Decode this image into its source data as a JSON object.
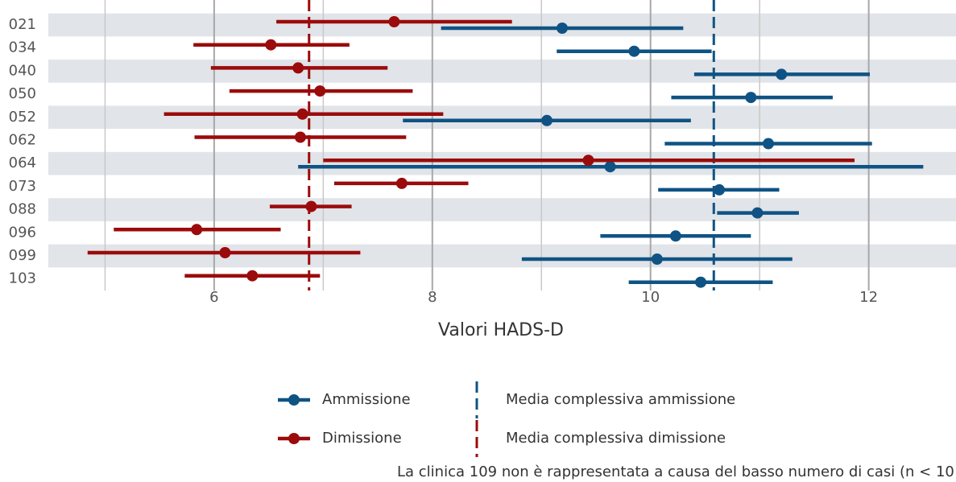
{
  "chart_data": {
    "type": "dot-errorbar",
    "categories": [
      "021",
      "034",
      "040",
      "050",
      "052",
      "062",
      "064",
      "073",
      "088",
      "096",
      "099",
      "103"
    ],
    "series": [
      {
        "name": "Ammissione",
        "color": "#0f5384",
        "values": [
          9.19,
          9.85,
          11.2,
          10.92,
          9.05,
          11.08,
          9.63,
          10.63,
          10.98,
          10.23,
          10.06,
          10.46
        ],
        "low": [
          8.08,
          9.14,
          10.4,
          10.19,
          7.73,
          10.13,
          6.77,
          10.07,
          10.61,
          9.54,
          8.82,
          9.8
        ],
        "high": [
          10.3,
          10.56,
          12.01,
          11.67,
          10.37,
          12.03,
          12.5,
          11.18,
          11.36,
          10.92,
          11.3,
          11.12
        ]
      },
      {
        "name": "Dimissione",
        "color": "#9b0b0b",
        "values": [
          7.65,
          6.52,
          6.77,
          6.97,
          6.81,
          6.79,
          9.43,
          7.72,
          6.89,
          5.84,
          6.1,
          6.35
        ],
        "low": [
          6.57,
          5.81,
          5.97,
          6.14,
          5.54,
          5.82,
          7.0,
          7.1,
          6.51,
          5.08,
          4.84,
          5.73
        ],
        "high": [
          8.73,
          7.24,
          7.59,
          7.82,
          8.1,
          7.76,
          11.87,
          8.33,
          7.26,
          6.61,
          7.34,
          6.97
        ]
      }
    ],
    "reference_lines": [
      {
        "name": "Media complessiva ammissione",
        "value": 10.58,
        "color": "#0f5384"
      },
      {
        "name": "Media complessiva dimissione",
        "value": 6.87,
        "color": "#9b0b0b"
      }
    ],
    "x_label": "Valori HADS-D",
    "xlim": [
      4.48,
      12.8
    ],
    "xticks": [
      6,
      8,
      10,
      12
    ],
    "xminorticks": [
      5,
      7,
      9,
      11
    ],
    "grid": true,
    "note": "La clinica 109 non è rappresentata a causa del basso numero di casi (n < 10"
  }
}
